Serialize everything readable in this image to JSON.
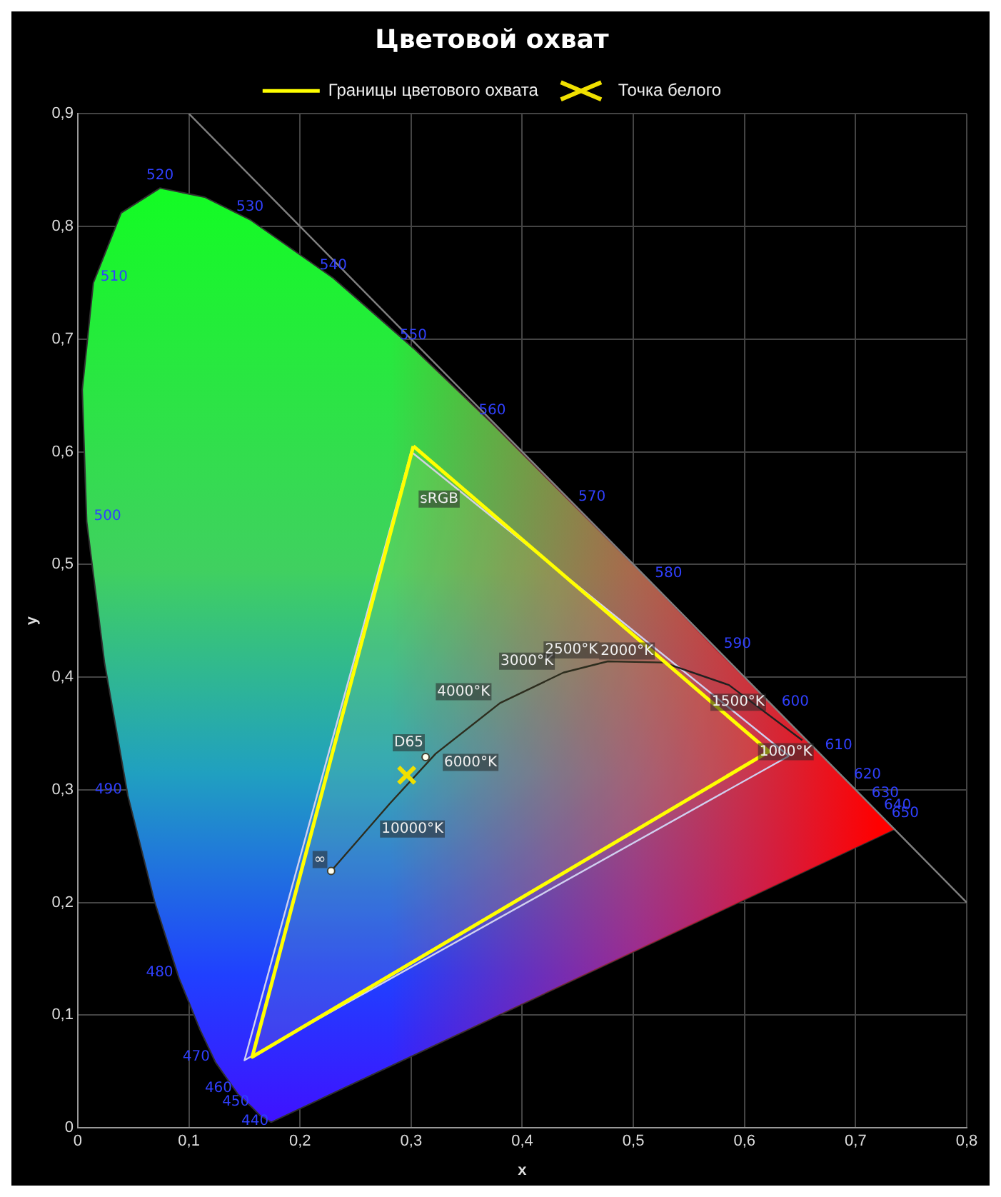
{
  "chart_data": {
    "type": "line",
    "title": "Цветовой охват",
    "xlabel": "x",
    "ylabel": "y",
    "xlim": [
      0,
      0.8
    ],
    "ylim": [
      0,
      0.9
    ],
    "xticks": [
      {
        "value": 0,
        "label": "0"
      },
      {
        "value": 0.1,
        "label": "0,1"
      },
      {
        "value": 0.2,
        "label": "0,2"
      },
      {
        "value": 0.3,
        "label": "0,3"
      },
      {
        "value": 0.4,
        "label": "0,4"
      },
      {
        "value": 0.5,
        "label": "0,5"
      },
      {
        "value": 0.6,
        "label": "0,6"
      },
      {
        "value": 0.7,
        "label": "0,7"
      },
      {
        "value": 0.8,
        "label": "0,8"
      }
    ],
    "yticks": [
      {
        "value": 0,
        "label": "0"
      },
      {
        "value": 0.1,
        "label": "0,1"
      },
      {
        "value": 0.2,
        "label": "0,2"
      },
      {
        "value": 0.3,
        "label": "0,3"
      },
      {
        "value": 0.4,
        "label": "0,4"
      },
      {
        "value": 0.5,
        "label": "0,5"
      },
      {
        "value": 0.6,
        "label": "0,6"
      },
      {
        "value": 0.7,
        "label": "0,7"
      },
      {
        "value": 0.8,
        "label": "0,8"
      },
      {
        "value": 0.9,
        "label": "0,9"
      }
    ],
    "grid": true,
    "legend": "top",
    "series": [
      {
        "type": "area",
        "color": "#303030",
        "marker": "none",
        "x": [
          0.174,
          0.164,
          0.157,
          0.144,
          0.124,
          0.11,
          0.091,
          0.069,
          0.045,
          0.024,
          0.008,
          0.004,
          0.014,
          0.039,
          0.074,
          0.114,
          0.155,
          0.23,
          0.302,
          0.373,
          0.444,
          0.513,
          0.575,
          0.627,
          0.666,
          0.692,
          0.708,
          0.719,
          0.726,
          0.735,
          0.174
        ],
        "values": [
          0.005,
          0.011,
          0.018,
          0.03,
          0.058,
          0.087,
          0.133,
          0.201,
          0.295,
          0.413,
          0.538,
          0.655,
          0.75,
          0.812,
          0.834,
          0.826,
          0.806,
          0.754,
          0.692,
          0.625,
          0.555,
          0.487,
          0.424,
          0.373,
          0.334,
          0.308,
          0.292,
          0.281,
          0.274,
          0.265,
          0.005
        ]
      },
      {
        "color": "#808080",
        "marker": "none",
        "x": [
          0.1,
          0.8
        ],
        "values": [
          0.9,
          0.2
        ]
      },
      {
        "type": "area",
        "color": "#d0d0f0",
        "marker": "none",
        "x": [
          0.64,
          0.3,
          0.15,
          0.64
        ],
        "values": [
          0.33,
          0.6,
          0.06,
          0.33
        ]
      },
      {
        "color": "#202020",
        "marker": "none",
        "x": [
          0.228,
          0.281,
          0.322,
          0.38,
          0.437,
          0.477,
          0.527,
          0.586,
          0.652
        ],
        "values": [
          0.228,
          0.288,
          0.332,
          0.377,
          0.404,
          0.414,
          0.413,
          0.393,
          0.344
        ]
      },
      {
        "type": "scatter",
        "color": "#ffffff",
        "marker": "circle",
        "x": [
          0.313,
          0.228
        ],
        "values": [
          0.329,
          0.228
        ]
      },
      {
        "type": "area",
        "name": "Границы цветового охвата",
        "color": "#ffff00",
        "marker": "none",
        "x": [
          0.302,
          0.622,
          0.157,
          0.302
        ],
        "values": [
          0.605,
          0.334,
          0.063,
          0.605
        ]
      },
      {
        "type": "scatter",
        "name": "Точка белого",
        "color": "#f0e000",
        "marker": "cross",
        "x": [
          0.296
        ],
        "values": [
          0.313
        ]
      }
    ],
    "annotations": [
      {
        "text": "440",
        "x": 0.164,
        "y": 0.011
      },
      {
        "text": "450",
        "x": 0.157,
        "y": 0.018
      },
      {
        "text": "460",
        "x": 0.144,
        "y": 0.03
      },
      {
        "text": "470",
        "x": 0.124,
        "y": 0.058
      },
      {
        "text": "480",
        "x": 0.091,
        "y": 0.133
      },
      {
        "text": "490",
        "x": 0.045,
        "y": 0.295
      },
      {
        "text": "500",
        "x": 0.008,
        "y": 0.538
      },
      {
        "text": "510",
        "x": 0.014,
        "y": 0.75
      },
      {
        "text": "520",
        "x": 0.074,
        "y": 0.834
      },
      {
        "text": "530",
        "x": 0.155,
        "y": 0.806
      },
      {
        "text": "540",
        "x": 0.23,
        "y": 0.754
      },
      {
        "text": "550",
        "x": 0.302,
        "y": 0.692
      },
      {
        "text": "560",
        "x": 0.373,
        "y": 0.625
      },
      {
        "text": "570",
        "x": 0.444,
        "y": 0.555
      },
      {
        "text": "580",
        "x": 0.513,
        "y": 0.487
      },
      {
        "text": "590",
        "x": 0.575,
        "y": 0.424
      },
      {
        "text": "600",
        "x": 0.627,
        "y": 0.373
      },
      {
        "text": "610",
        "x": 0.666,
        "y": 0.334
      },
      {
        "text": "620",
        "x": 0.692,
        "y": 0.308
      },
      {
        "text": "630",
        "x": 0.708,
        "y": 0.292
      },
      {
        "text": "640",
        "x": 0.719,
        "y": 0.281
      },
      {
        "text": "650",
        "x": 0.726,
        "y": 0.274
      },
      "sRGB",
      {
        "text": "D65",
        "x": 0.313,
        "y": 0.329
      },
      {
        "text": "∞",
        "x": 0.228,
        "y": 0.228
      },
      {
        "text": "10000°K",
        "x": 0.281,
        "y": 0.288
      },
      {
        "text": "6000°K",
        "x": 0.322,
        "y": 0.332
      },
      {
        "text": "4000°K",
        "x": 0.38,
        "y": 0.377
      },
      {
        "text": "3000°K",
        "x": 0.437,
        "y": 0.404
      },
      {
        "text": "2500°K",
        "x": 0.477,
        "y": 0.414
      },
      {
        "text": "2000°K",
        "x": 0.527,
        "y": 0.413
      },
      {
        "text": "1500°K",
        "x": 0.586,
        "y": 0.393
      },
      {
        "text": "1000°K",
        "x": 0.652,
        "y": 0.344
      }
    ]
  }
}
